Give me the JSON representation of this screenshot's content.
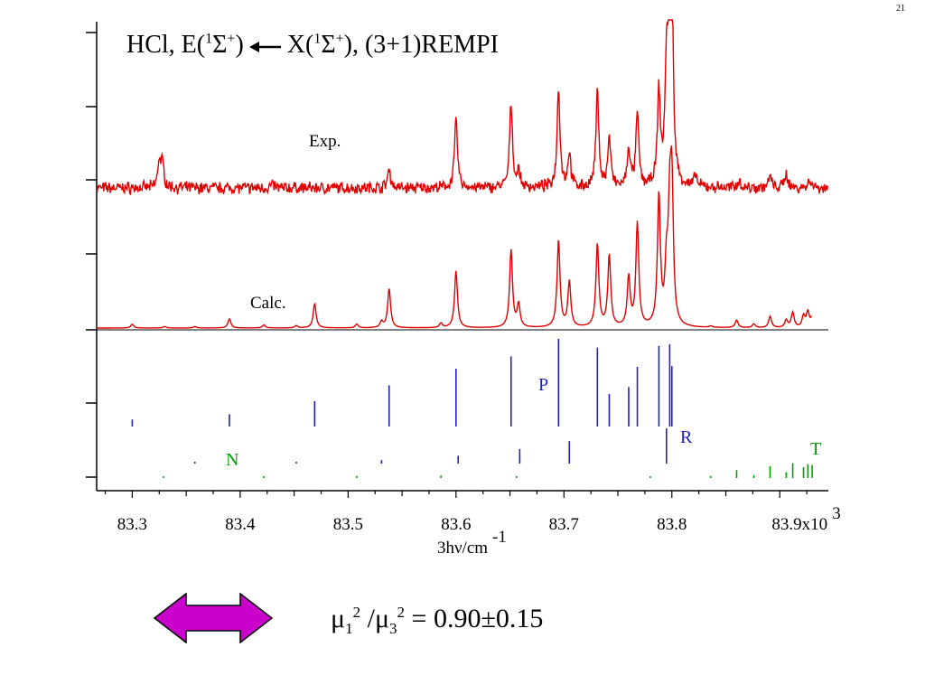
{
  "slide": {
    "page_number": "21",
    "title": {
      "molecule": "HCl, E(",
      "upper_state_sup": "1",
      "upper_state": "Σ",
      "upper_state_sign": "+",
      "upper_close": ")",
      "lower_state_open": "X(",
      "lower_state_sup": "1",
      "lower_state": "Σ",
      "lower_state_sign": "+",
      "lower_close": "), (3+1)REMPI"
    },
    "ratio": {
      "mu": "μ",
      "sub1": "1",
      "sup1": "2",
      "slash": " /",
      "sub3": "3",
      "sup3": "2",
      "value": " = 0.90±0.15"
    },
    "double_arrow_color": "#cc00cc"
  },
  "chart_data": {
    "type": "line",
    "xlabel_main": "3hν/cm",
    "xlabel_sup": "-1",
    "x_tick_labels": [
      "83.3",
      "83.4",
      "83.5",
      "83.6",
      "83.7",
      "83.8",
      "83.9x10"
    ],
    "x_tick_label_sup": "3",
    "x_ticks": [
      83300,
      83400,
      83500,
      83600,
      83700,
      83800,
      83900
    ],
    "xlim": [
      83267,
      83945
    ],
    "colors": {
      "spectrum": "#e00000",
      "stick_main": "#2020c0",
      "stick_green": "#00a000",
      "axis": "#000000"
    },
    "traces": [
      {
        "label": "Exp.",
        "noise_amplitude": 0.06,
        "baseline": 0.2,
        "peaks": [
          [
            83325,
            0.35
          ],
          [
            83328,
            0.3
          ],
          [
            83430,
            0.05
          ],
          [
            83538,
            0.25
          ],
          [
            83600,
            0.9
          ],
          [
            83651,
            1.1
          ],
          [
            83658,
            0.2
          ],
          [
            83695,
            1.3
          ],
          [
            83705,
            0.45
          ],
          [
            83731,
            1.25
          ],
          [
            83742,
            0.65
          ],
          [
            83760,
            0.5
          ],
          [
            83768,
            0.95
          ],
          [
            83788,
            1.2
          ],
          [
            83795,
            1.35
          ],
          [
            83798,
            2.15
          ],
          [
            83800,
            2.05
          ],
          [
            83822,
            0.15
          ],
          [
            83862,
            0.1
          ],
          [
            83891,
            0.15
          ],
          [
            83906,
            0.2
          ],
          [
            83928,
            0.12
          ]
        ]
      },
      {
        "label": "Calc.",
        "baseline": 0.0,
        "peaks": [
          [
            83300,
            0.05
          ],
          [
            83330,
            0.02
          ],
          [
            83358,
            0.02
          ],
          [
            83390,
            0.12
          ],
          [
            83422,
            0.04
          ],
          [
            83452,
            0.03
          ],
          [
            83469,
            0.32
          ],
          [
            83508,
            0.05
          ],
          [
            83531,
            0.08
          ],
          [
            83538,
            0.52
          ],
          [
            83586,
            0.06
          ],
          [
            83600,
            0.75
          ],
          [
            83651,
            1.02
          ],
          [
            83658,
            0.3
          ],
          [
            83695,
            1.15
          ],
          [
            83705,
            0.6
          ],
          [
            83731,
            1.1
          ],
          [
            83742,
            0.95
          ],
          [
            83760,
            0.65
          ],
          [
            83768,
            1.36
          ],
          [
            83788,
            1.72
          ],
          [
            83795,
            0.7
          ],
          [
            83798,
            1.3
          ],
          [
            83800,
            1.75
          ],
          [
            83836,
            0.02
          ],
          [
            83860,
            0.1
          ],
          [
            83876,
            0.05
          ],
          [
            83891,
            0.15
          ],
          [
            83906,
            0.1
          ],
          [
            83912,
            0.2
          ],
          [
            83922,
            0.15
          ],
          [
            83926,
            0.2
          ],
          [
            83930,
            0.13
          ]
        ]
      }
    ],
    "stick_spectra": [
      {
        "branch": "P",
        "sticks": [
          [
            83300,
            0.08
          ],
          [
            83390,
            0.14
          ],
          [
            83469,
            0.29
          ],
          [
            83538,
            0.47
          ],
          [
            83600,
            0.66
          ],
          [
            83651,
            0.8
          ],
          [
            83695,
            1.0
          ],
          [
            83731,
            0.9
          ],
          [
            83742,
            0.37
          ],
          [
            83760,
            0.45
          ],
          [
            83768,
            0.68
          ],
          [
            83788,
            0.92
          ],
          [
            83798,
            0.94
          ],
          [
            83800,
            0.69
          ]
        ]
      },
      {
        "branch": "R",
        "sticks": [
          [
            83358,
            0.02
          ],
          [
            83452,
            0.03
          ],
          [
            83531,
            0.07
          ],
          [
            83602,
            0.16
          ],
          [
            83659,
            0.3
          ],
          [
            83705,
            0.46
          ],
          [
            83795,
            0.72
          ]
        ]
      },
      {
        "branch": "N",
        "sticks": [
          [
            83329,
            0.02
          ],
          [
            83422,
            0.03
          ],
          [
            83508,
            0.04
          ],
          [
            83586,
            0.05
          ],
          [
            83656,
            0.04
          ]
        ]
      },
      {
        "branch": "T",
        "sticks": [
          [
            83780,
            0.01
          ],
          [
            83836,
            0.02
          ],
          [
            83860,
            0.08
          ],
          [
            83876,
            0.03
          ],
          [
            83891,
            0.12
          ],
          [
            83906,
            0.06
          ],
          [
            83912,
            0.15
          ],
          [
            83922,
            0.11
          ],
          [
            83926,
            0.14
          ],
          [
            83930,
            0.13
          ]
        ]
      }
    ]
  }
}
